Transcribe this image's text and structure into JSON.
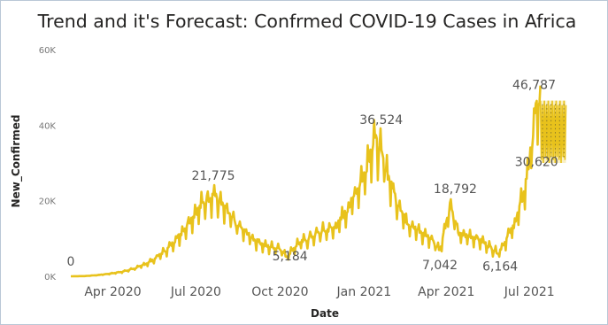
{
  "chart_data": {
    "type": "line",
    "title": "Trend and it's Forecast: Confrmed COVID-19 Cases in Africa",
    "xlabel": "Date",
    "ylabel": "New_Confirmed",
    "ylim": [
      0,
      60000
    ],
    "yticks": [
      {
        "value": 0,
        "label": "0K"
      },
      {
        "value": 20000,
        "label": "20K"
      },
      {
        "value": 40000,
        "label": "40K"
      },
      {
        "value": 60000,
        "label": "60K"
      }
    ],
    "xrange": [
      "2020-02-15",
      "2021-08-25"
    ],
    "xticks": [
      {
        "date": "2020-04-01",
        "label": "Apr 2020"
      },
      {
        "date": "2020-07-01",
        "label": "Jul 2020"
      },
      {
        "date": "2020-10-01",
        "label": "Oct 2020"
      },
      {
        "date": "2021-01-01",
        "label": "Jan 2021"
      },
      {
        "date": "2021-04-01",
        "label": "Apr 2021"
      },
      {
        "date": "2021-07-01",
        "label": "Jul 2021"
      }
    ],
    "series": [
      {
        "color": "#E8C21C",
        "points": [
          [
            "2020-02-15",
            0
          ],
          [
            "2020-03-01",
            60
          ],
          [
            "2020-03-15",
            300
          ],
          [
            "2020-04-01",
            800
          ],
          [
            "2020-04-15",
            1400
          ],
          [
            "2020-05-01",
            2600
          ],
          [
            "2020-05-15",
            4300
          ],
          [
            "2020-06-01",
            7500
          ],
          [
            "2020-06-15",
            11500
          ],
          [
            "2020-07-01",
            17000
          ],
          [
            "2020-07-12",
            20200
          ],
          [
            "2020-07-20",
            21775
          ],
          [
            "2020-08-01",
            18000
          ],
          [
            "2020-08-15",
            13500
          ],
          [
            "2020-09-01",
            10000
          ],
          [
            "2020-09-15",
            8000
          ],
          [
            "2020-10-01",
            7500
          ],
          [
            "2020-10-08",
            5184
          ],
          [
            "2020-10-20",
            8500
          ],
          [
            "2020-11-01",
            10000
          ],
          [
            "2020-11-15",
            11800
          ],
          [
            "2020-12-01",
            13000
          ],
          [
            "2020-12-15",
            18000
          ],
          [
            "2021-01-01",
            27000
          ],
          [
            "2021-01-12",
            36524
          ],
          [
            "2021-01-22",
            31000
          ],
          [
            "2021-02-01",
            23000
          ],
          [
            "2021-02-15",
            15000
          ],
          [
            "2021-03-01",
            12000
          ],
          [
            "2021-03-15",
            10000
          ],
          [
            "2021-03-25",
            7042
          ],
          [
            "2021-04-05",
            18792
          ],
          [
            "2021-04-15",
            11000
          ],
          [
            "2021-05-01",
            10500
          ],
          [
            "2021-05-15",
            8500
          ],
          [
            "2021-05-28",
            6164
          ],
          [
            "2021-06-05",
            9500
          ],
          [
            "2021-06-15",
            14000
          ],
          [
            "2021-06-25",
            22000
          ],
          [
            "2021-07-01",
            30620
          ],
          [
            "2021-07-05",
            38000
          ],
          [
            "2021-07-10",
            46787
          ],
          [
            "2021-07-13",
            44000
          ]
        ]
      }
    ],
    "forecast": {
      "color": "#E8C21C",
      "start": "2021-07-13",
      "end": "2021-08-10",
      "min": 30000,
      "max": 46500
    },
    "data_labels": [
      {
        "date": "2020-02-15",
        "value": 0,
        "label": "0"
      },
      {
        "date": "2020-07-20",
        "value": 21775,
        "label": "21,775"
      },
      {
        "date": "2020-10-08",
        "value": 5184,
        "label": "5,184"
      },
      {
        "date": "2021-01-12",
        "value": 36524,
        "label": "36,524"
      },
      {
        "date": "2021-03-25",
        "value": 7042,
        "label": "7,042"
      },
      {
        "date": "2021-04-05",
        "value": 18792,
        "label": "18,792"
      },
      {
        "date": "2021-05-28",
        "value": 6164,
        "label": "6,164"
      },
      {
        "date": "2021-07-01",
        "value": 30620,
        "label": "30,620"
      },
      {
        "date": "2021-07-10",
        "value": 46787,
        "label": "46,787"
      }
    ],
    "grid": false,
    "legend": "none"
  }
}
